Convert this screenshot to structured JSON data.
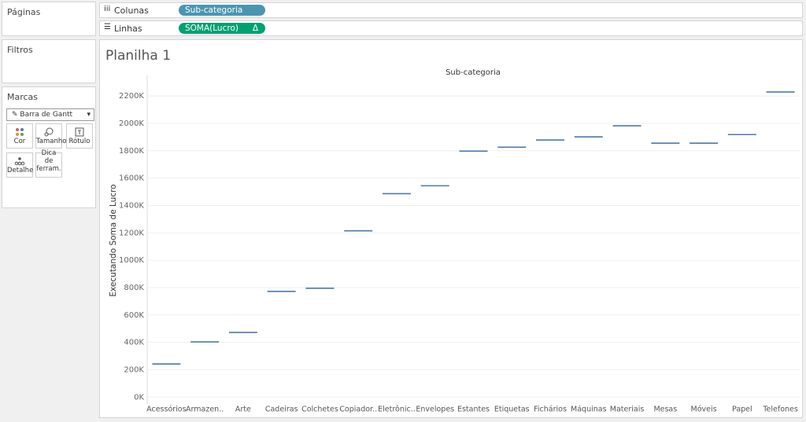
{
  "ui": {
    "pages_title": "Páginas",
    "filters_title": "Filtros",
    "marks_title": "Marcas",
    "mark_type": "Barra de Gantt",
    "mark_buttons": [
      "Cor",
      "Tamanho",
      "Rótulo",
      "Detalhe",
      "Dica de ferram."
    ],
    "columns_label": "Colunas",
    "columns_pill": "Sub-categoria",
    "rows_label": "Linhas",
    "rows_pill": "SOMA(Lucro)",
    "rows_pill_icon": "Δ"
  },
  "chart_data": {
    "type": "gantt",
    "title": "Planilha 1",
    "x_label": "Sub-categoria",
    "y_label": "Executando Soma de Lucro",
    "categories": [
      "Acessórios",
      "Armazen..",
      "Arte",
      "Cadeiras",
      "Colchetes",
      "Copiador..",
      "Eletrônic..",
      "Envelopes",
      "Estantes",
      "Etiquetas",
      "Fichários",
      "Máquinas",
      "Materiais",
      "Mesas",
      "Móveis",
      "Papel",
      "Telefones"
    ],
    "values": [
      242000,
      403000,
      472000,
      772000,
      795000,
      1215000,
      1486000,
      1544000,
      1797000,
      1826000,
      1878000,
      1901000,
      1982000,
      1855000,
      1855000,
      1918000,
      2229000
    ],
    "color": "#4e79a7",
    "ylim": [
      -50000,
      2350000
    ],
    "yticks": [
      {
        "value": 0,
        "label": "0K"
      },
      {
        "value": 200000,
        "label": "200K"
      },
      {
        "value": 400000,
        "label": "400K"
      },
      {
        "value": 600000,
        "label": "600K"
      },
      {
        "value": 800000,
        "label": "800K"
      },
      {
        "value": 1000000,
        "label": "1000K"
      },
      {
        "value": 1200000,
        "label": "1200K"
      },
      {
        "value": 1400000,
        "label": "1400K"
      },
      {
        "value": 1600000,
        "label": "1600K"
      },
      {
        "value": 1800000,
        "label": "1800K"
      },
      {
        "value": 2000000,
        "label": "2000K"
      },
      {
        "value": 2200000,
        "label": "2200K"
      }
    ],
    "grid": true
  }
}
